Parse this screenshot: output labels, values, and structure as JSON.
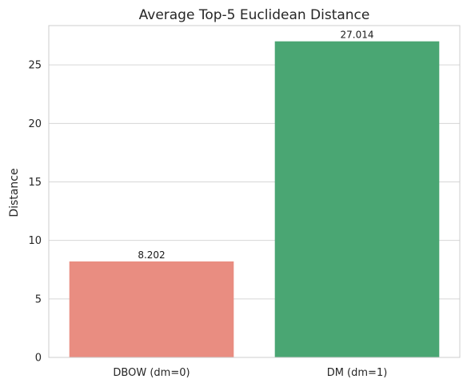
{
  "chart_data": {
    "type": "bar",
    "title": "Average Top-5 Euclidean Distance",
    "xlabel": "",
    "ylabel": "Distance",
    "categories": [
      "DBOW (dm=0)",
      "DM (dm=1)"
    ],
    "values": [
      8.202,
      27.014
    ],
    "data_labels": [
      "8.202",
      "27.014"
    ],
    "colors": [
      "#e98d81",
      "#4aa673"
    ],
    "ylim": [
      0,
      28.36
    ],
    "yticks": [
      0,
      5,
      10,
      15,
      20,
      25
    ],
    "grid": true,
    "grid_axis": "y",
    "legend": "none"
  }
}
